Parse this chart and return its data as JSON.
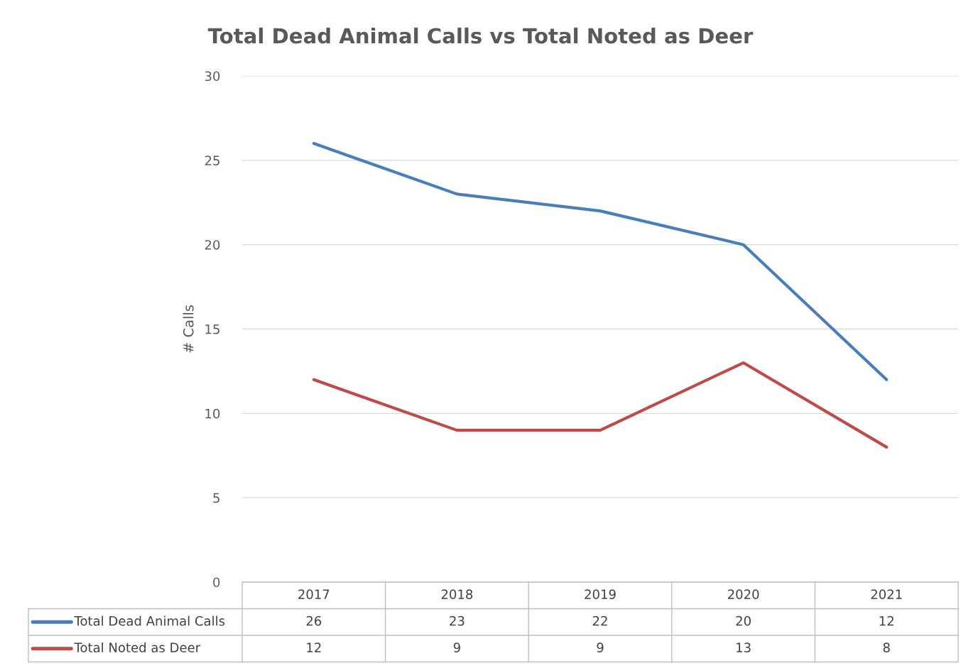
{
  "chart_data": {
    "type": "line",
    "title": "Total Dead Animal Calls vs Total Noted as Deer",
    "ylabel": "# Calls",
    "categories": [
      "2017",
      "2018",
      "2019",
      "2020",
      "2021"
    ],
    "series": [
      {
        "name": "Total Dead Animal Calls",
        "color": "#4a7ebb",
        "values": [
          26,
          23,
          22,
          20,
          12
        ]
      },
      {
        "name": "Total Noted as Deer",
        "color": "#be4b48",
        "values": [
          12,
          9,
          9,
          13,
          8
        ]
      }
    ],
    "ylim": [
      0,
      30
    ],
    "yticks": [
      0,
      5,
      10,
      15,
      20,
      25,
      30
    ],
    "grid": "y",
    "legend": "bottom",
    "data_labels": true,
    "marker": "none",
    "line_style": "solid"
  }
}
